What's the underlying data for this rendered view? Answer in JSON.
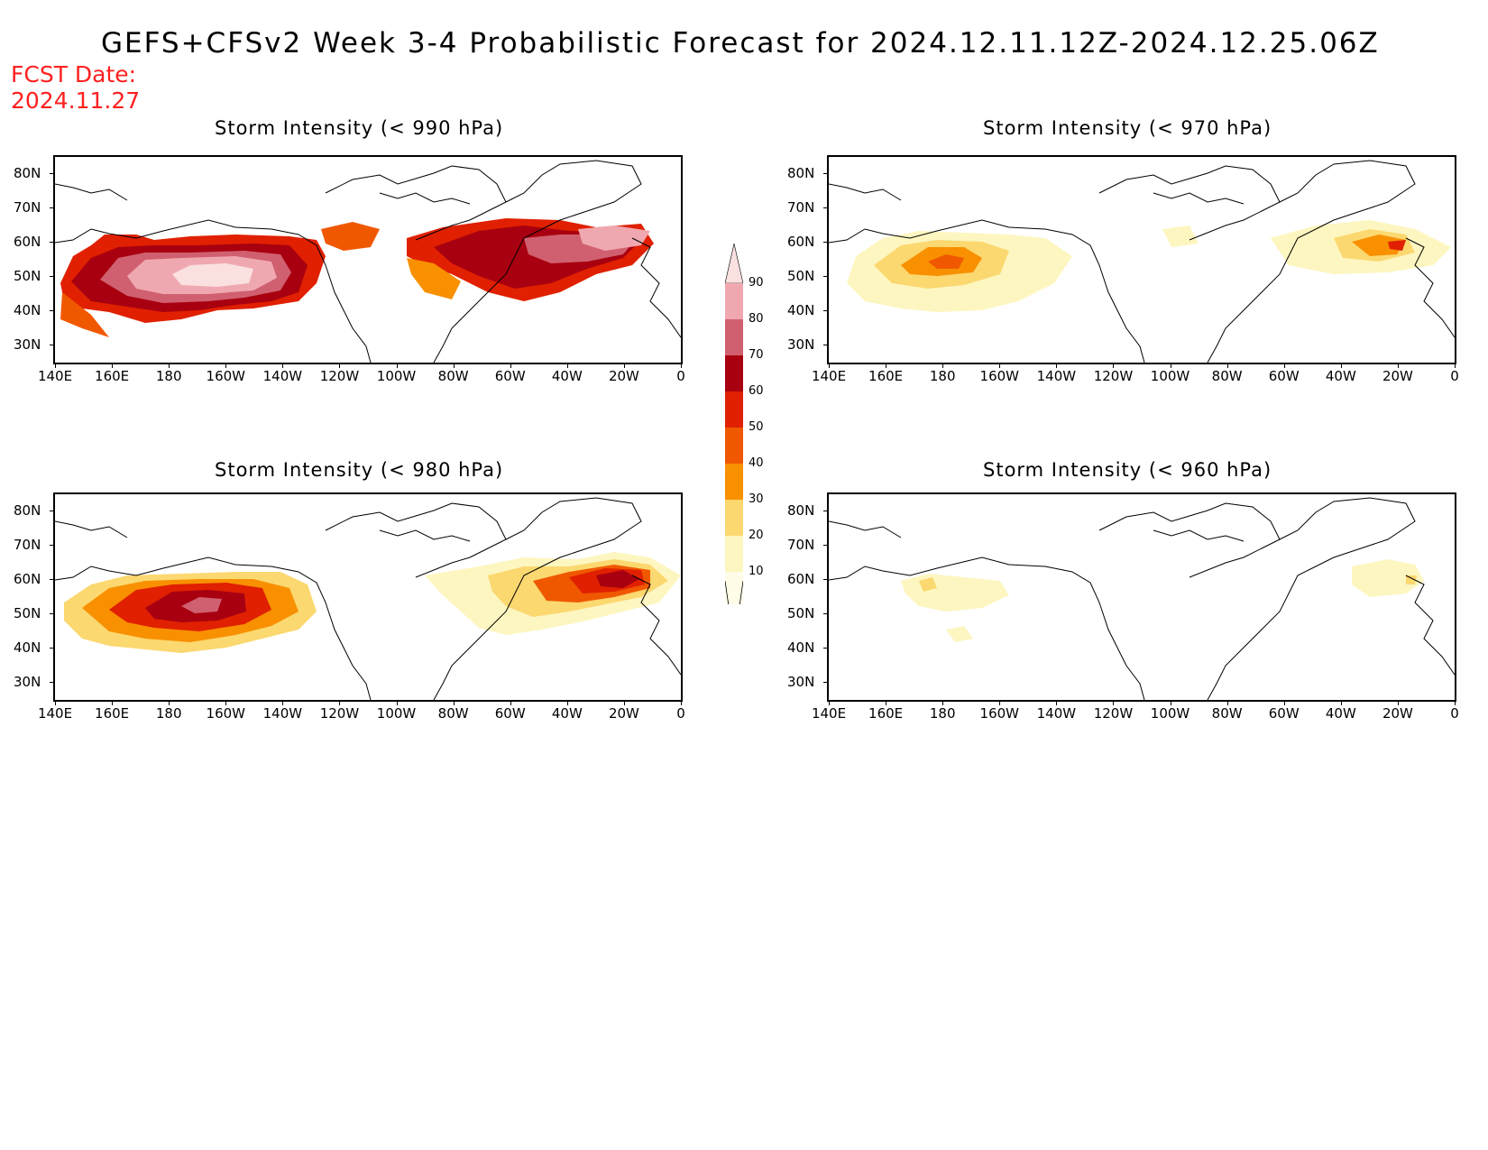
{
  "title": "GEFS+CFSv2 Week 3-4 Probabilistic Forecast for 2024.12.11.12Z-2024.12.25.06Z",
  "fcst_date_label": "FCST Date:",
  "fcst_date_value": "2024.11.27",
  "lat_ticks": [
    "80N",
    "70N",
    "60N",
    "50N",
    "40N",
    "30N"
  ],
  "lon_ticks": [
    "140E",
    "160E",
    "180",
    "160W",
    "140W",
    "120W",
    "100W",
    "80W",
    "60W",
    "40W",
    "20W",
    "0"
  ],
  "panels": [
    {
      "title": "Storm Intensity (< 990 hPa)",
      "threshold_hpa": 990
    },
    {
      "title": "Storm Intensity (< 970 hPa)",
      "threshold_hpa": 970
    },
    {
      "title": "Storm Intensity (< 980 hPa)",
      "threshold_hpa": 980
    },
    {
      "title": "Storm Intensity (< 960 hPa)",
      "threshold_hpa": 960
    }
  ],
  "colorbar": {
    "levels": [
      "90",
      "80",
      "70",
      "60",
      "50",
      "40",
      "30",
      "20",
      "10"
    ],
    "colors": [
      "#fbe0e0",
      "#f0a8b0",
      "#d06070",
      "#a80010",
      "#e02000",
      "#f05800",
      "#f89000",
      "#fbd870",
      "#fdf6c0",
      "#fffde8"
    ]
  },
  "colors": {
    "title_fcst": "#ff2020",
    "coast": "#000000"
  }
}
